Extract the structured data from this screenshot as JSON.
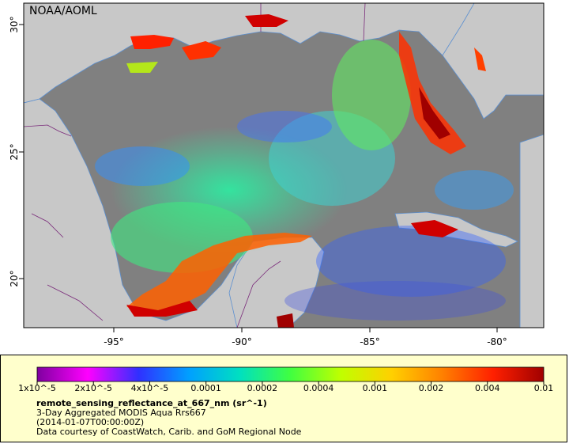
{
  "map": {
    "credit": "NOAA/AOML",
    "lon_ticks": [
      "-95°",
      "-90°",
      "-85°",
      "-80°"
    ],
    "lat_ticks": [
      "30°",
      "25°",
      "20°"
    ],
    "colors": {
      "land": "#c8c8c8",
      "no_data": "#808080",
      "coast": "#6fa0d8",
      "borders": "#7a2a7a"
    }
  },
  "legend": {
    "colorbar_stops": [
      "#7f00a0",
      "#ff00ff",
      "#3030ff",
      "#00a0ff",
      "#00e0c0",
      "#40ff40",
      "#c0ff00",
      "#ffd000",
      "#ff8000",
      "#ff2000",
      "#a00000"
    ],
    "tick_labels": [
      "1x10^-5",
      "2x10^-5",
      "4x10^-5",
      "0.0001",
      "0.0002",
      "0.0004",
      "0.001",
      "0.002",
      "0.004",
      "0.01"
    ],
    "variable": "remote_sensing_reflectance_at_667_nm (sr^-1)",
    "product": "3-Day Aggregated MODIS Aqua Rrs667",
    "time": "(2014-01-07T00:00:00Z)",
    "courtesy": "Data courtesy of CoastWatch, Carib. and GoM Regional Node"
  }
}
